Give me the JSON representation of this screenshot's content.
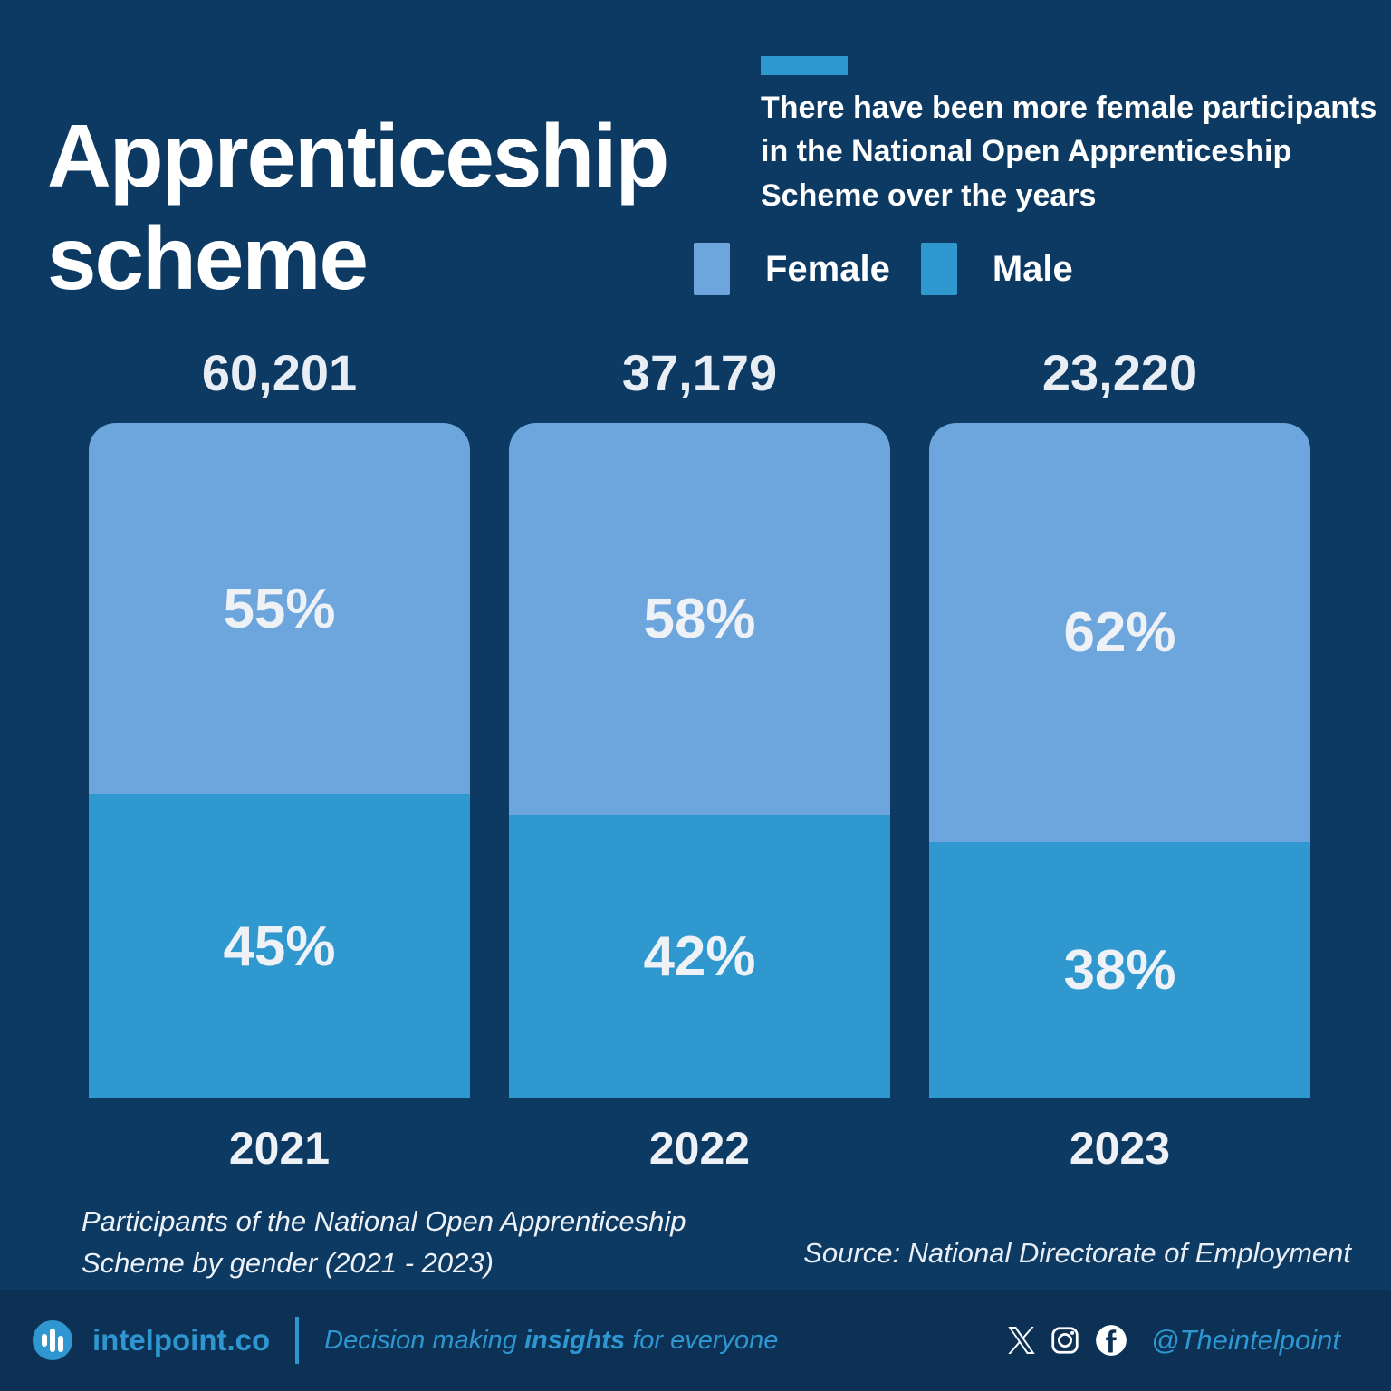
{
  "title": "Apprenticeship scheme",
  "subtitle": "There have been more female participants in the National Open Apprenticeship Scheme over the years",
  "chart_data": {
    "type": "bar",
    "stacked": true,
    "orientation": "vertical",
    "categories": [
      "2021",
      "2022",
      "2023"
    ],
    "totals": [
      60201,
      37179,
      23220
    ],
    "totals_display": [
      "60,201",
      "37,179",
      "23,220"
    ],
    "series": [
      {
        "name": "Female",
        "values": [
          55,
          58,
          62
        ],
        "color": "#6ca6dd"
      },
      {
        "name": "Male",
        "values": [
          45,
          42,
          38
        ],
        "color": "#2f98cf"
      }
    ],
    "unit": "%",
    "legend_position": "top",
    "value_labels": "inside-center"
  },
  "caption": "Participants of the National Open Apprenticeship Scheme by gender (2021 - 2023)",
  "source": "Source: National Directorate of Employment",
  "footer": {
    "brand": "intelpoint.co",
    "tagline_prefix": "Decision making ",
    "tagline_bold": "insights",
    "tagline_suffix": " for everyone",
    "handle": "@Theintelpoint",
    "social_icons": [
      "x-icon",
      "instagram-icon",
      "facebook-icon"
    ]
  },
  "colors": {
    "background": "#0d3a63",
    "footer_background": "#0c3154",
    "accent": "#2e96d1",
    "female": "#6ca6dd",
    "male": "#2f98cf",
    "text_primary": "#ffffff",
    "text_soft": "#e9eef5"
  }
}
